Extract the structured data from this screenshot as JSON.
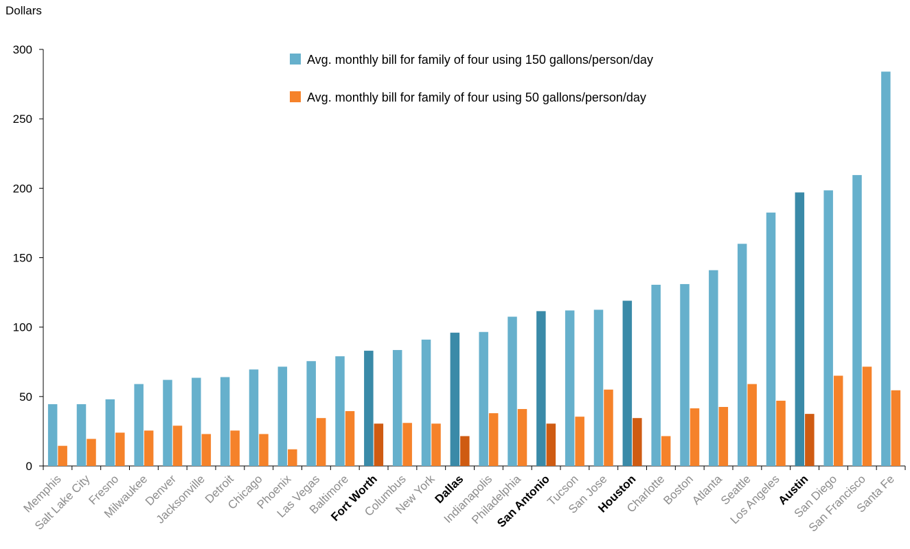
{
  "chart_data": {
    "type": "bar",
    "ylabel": "Dollars",
    "ylim": [
      0,
      300
    ],
    "yticks": [
      0,
      50,
      100,
      150,
      200,
      250,
      300
    ],
    "grid": false,
    "legend_position": "top-center",
    "categories": [
      "Memphis",
      "Salt Lake City",
      "Fresno",
      "Milwaukee",
      "Denver",
      "Jacksonville",
      "Detroit",
      "Chicago",
      "Phoenix",
      "Las Vegas",
      "Baltimore",
      "Fort Worth",
      "Columbus",
      "New York",
      "Dallas",
      "Indianapolis",
      "Philadelphia",
      "San Antonio",
      "Tucson",
      "San Jose",
      "Houston",
      "Charlotte",
      "Boston",
      "Atlanta",
      "Seattle",
      "Los Angeles",
      "Austin",
      "San Diego",
      "San Francisco",
      "Santa Fe"
    ],
    "highlighted": [
      "Fort Worth",
      "Dallas",
      "San Antonio",
      "Houston",
      "Austin"
    ],
    "series": [
      {
        "name": "Avg. monthly bill for family of four using 150 gallons/person/day",
        "color": "#66b0cc",
        "highlight_color": "#3a8aa8",
        "values": [
          44.5,
          44.5,
          48,
          59,
          62,
          63.5,
          64,
          69.5,
          71.5,
          75.5,
          79,
          83,
          83.5,
          91,
          96,
          96.5,
          107.5,
          111.5,
          112,
          112.5,
          119,
          130.5,
          131,
          141,
          160,
          182.5,
          197,
          198.5,
          209.5,
          284
        ]
      },
      {
        "name": "Avg. monthly bill for family of four using 50 gallons/person/day",
        "color": "#f5822a",
        "highlight_color": "#cf5b12",
        "values": [
          14.5,
          19.5,
          24,
          25.5,
          29,
          23,
          25.5,
          23,
          12,
          34.5,
          39.5,
          30.5,
          31,
          30.5,
          21.5,
          38,
          41,
          30.5,
          35.5,
          55,
          34.5,
          21.5,
          41.5,
          42.5,
          59,
          47,
          37.5,
          65,
          71.5,
          54.5
        ]
      }
    ]
  }
}
